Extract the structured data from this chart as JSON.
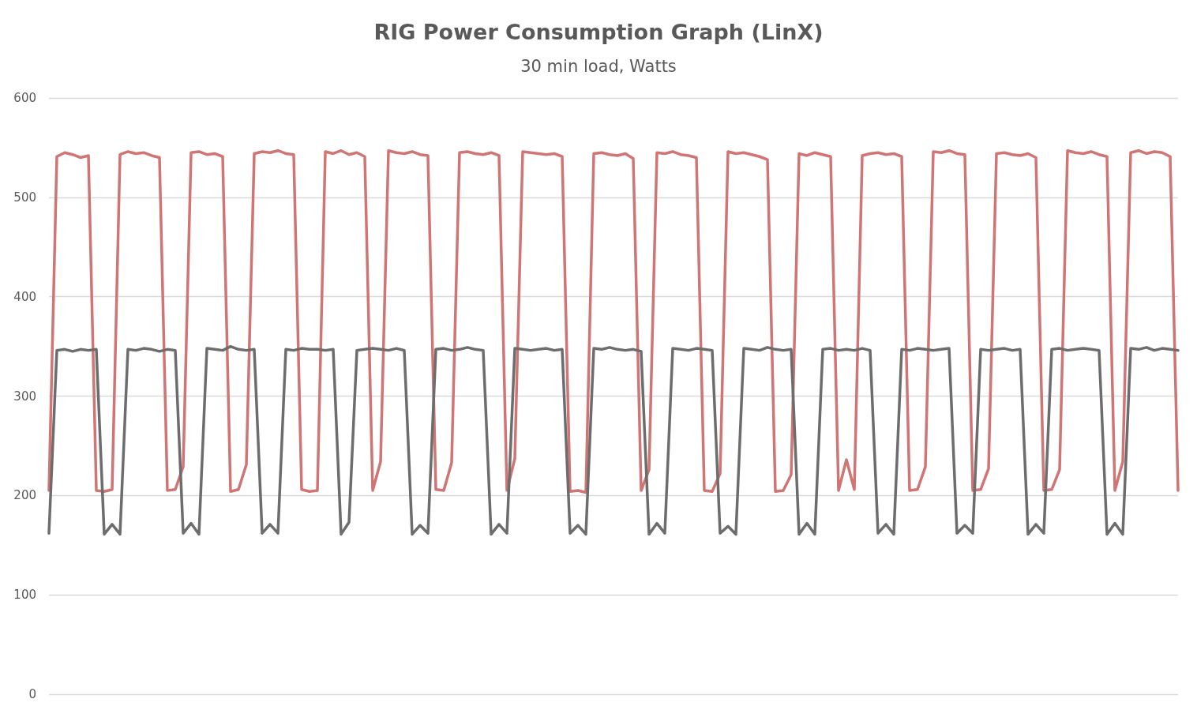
{
  "chart_data": {
    "type": "line",
    "title": "RIG Power Consumption Graph (LinX)",
    "subtitle": "30 min load, Watts",
    "categories": [
      null,
      null,
      null,
      null,
      null,
      null,
      null,
      null,
      null,
      null,
      null,
      null,
      null,
      null,
      null,
      null,
      null,
      null,
      null,
      null,
      null,
      null,
      null,
      null,
      null,
      null,
      null,
      null,
      null,
      null,
      null,
      null,
      null,
      null,
      null,
      null,
      null,
      null,
      null,
      null,
      null,
      null,
      null,
      null,
      null,
      null,
      null,
      null,
      null,
      null,
      null,
      null,
      null,
      null,
      null,
      null,
      null,
      null,
      null,
      null,
      null,
      null,
      null,
      null,
      null,
      null,
      null,
      null,
      null,
      null,
      null,
      null,
      null,
      null,
      null,
      null,
      null,
      null,
      null,
      null,
      null,
      null,
      null,
      null,
      null,
      null,
      null,
      null,
      null,
      null,
      null,
      null,
      null,
      null,
      null,
      null,
      null,
      null,
      null,
      null,
      null,
      null,
      null,
      null,
      null,
      null,
      null,
      null,
      null,
      null,
      null,
      null,
      null,
      null,
      null,
      null,
      null,
      null,
      null,
      null,
      null,
      null,
      null,
      null,
      null,
      null,
      null,
      null,
      null,
      null,
      null,
      null,
      null,
      null,
      null,
      null,
      null,
      null,
      null,
      null,
      null,
      null,
      null,
      null
    ],
    "series": [
      {
        "color": "#d07474",
        "values": [
          205,
          541,
          545,
          543,
          540,
          542,
          205,
          204,
          206,
          543,
          546,
          544,
          545,
          542,
          540,
          205,
          206,
          229,
          545,
          546,
          543,
          544,
          541,
          204,
          206,
          231,
          544,
          546,
          545,
          547,
          544,
          543,
          206,
          204,
          205,
          546,
          544,
          547,
          543,
          545,
          541,
          205,
          234,
          547,
          545,
          544,
          546,
          543,
          542,
          206,
          205,
          233,
          545,
          546,
          544,
          543,
          545,
          542,
          205,
          237,
          546,
          545,
          544,
          543,
          544,
          541,
          204,
          205,
          203,
          544,
          545,
          543,
          542,
          544,
          539,
          205,
          226,
          545,
          544,
          546,
          543,
          542,
          540,
          205,
          204,
          222,
          546,
          544,
          545,
          543,
          541,
          538,
          204,
          205,
          221,
          544,
          542,
          545,
          543,
          541,
          205,
          236,
          206,
          542,
          544,
          545,
          543,
          544,
          541,
          205,
          206,
          229,
          546,
          545,
          547,
          544,
          543,
          205,
          206,
          227,
          544,
          545,
          543,
          542,
          544,
          540,
          205,
          206,
          226,
          547,
          545,
          544,
          546,
          543,
          541,
          205,
          234,
          545,
          547,
          544,
          546,
          545,
          541,
          205
        ]
      },
      {
        "color": "#6d6d6d",
        "values": [
          162,
          346,
          347,
          345,
          347,
          346,
          347,
          161,
          171,
          161,
          347,
          346,
          348,
          347,
          345,
          347,
          346,
          162,
          172,
          161,
          348,
          347,
          346,
          350,
          347,
          346,
          347,
          162,
          171,
          162,
          347,
          346,
          348,
          347,
          347,
          346,
          347,
          161,
          173,
          346,
          347,
          348,
          347,
          346,
          348,
          346,
          161,
          170,
          162,
          347,
          348,
          346,
          347,
          349,
          347,
          346,
          161,
          171,
          162,
          348,
          347,
          346,
          347,
          348,
          346,
          347,
          162,
          170,
          161,
          348,
          347,
          349,
          347,
          346,
          347,
          345,
          161,
          172,
          162,
          348,
          347,
          346,
          348,
          347,
          346,
          162,
          169,
          161,
          348,
          347,
          346,
          349,
          347,
          346,
          347,
          161,
          172,
          161,
          347,
          348,
          346,
          347,
          346,
          348,
          346,
          162,
          171,
          161,
          347,
          346,
          348,
          347,
          346,
          347,
          348,
          162,
          170,
          162,
          347,
          346,
          347,
          348,
          346,
          347,
          161,
          171,
          162,
          347,
          348,
          346,
          347,
          348,
          347,
          346,
          161,
          172,
          161,
          348,
          347,
          349,
          346,
          348,
          347,
          346
        ]
      }
    ],
    "ylim": [
      0,
      600
    ],
    "yticks": [
      0,
      100,
      200,
      300,
      400,
      500,
      600
    ],
    "grid": "y",
    "marker": "none",
    "line_style": "solid",
    "tick_labels": "y"
  }
}
